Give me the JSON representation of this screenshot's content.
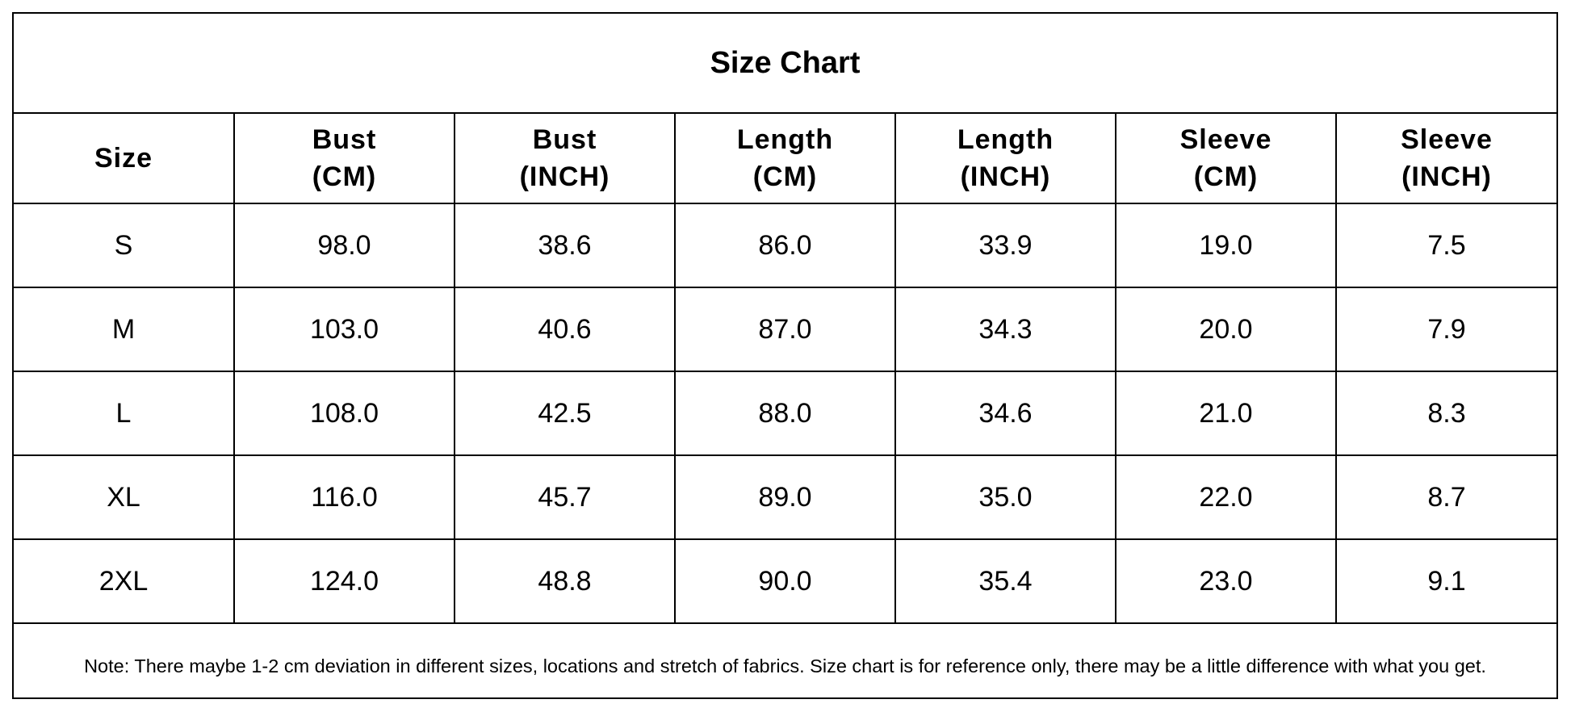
{
  "title": "Size Chart",
  "table": {
    "header": [
      "Size",
      "Bust\n(CM)",
      "Bust\n(INCH)",
      "Length\n(CM)",
      "Length\n(INCH)",
      "Sleeve\n(CM)",
      "Sleeve\n(INCH)"
    ],
    "rows": [
      [
        "S",
        "98.0",
        "38.6",
        "86.0",
        "33.9",
        "19.0",
        "7.5"
      ],
      [
        "M",
        "103.0",
        "40.6",
        "87.0",
        "34.3",
        "20.0",
        "7.9"
      ],
      [
        "L",
        "108.0",
        "42.5",
        "88.0",
        "34.6",
        "21.0",
        "8.3"
      ],
      [
        "XL",
        "116.0",
        "45.7",
        "89.0",
        "35.0",
        "22.0",
        "8.7"
      ],
      [
        "2XL",
        "124.0",
        "48.8",
        "90.0",
        "35.4",
        "23.0",
        "9.1"
      ]
    ]
  },
  "note": "Note: There maybe 1-2 cm deviation in different sizes, locations and stretch of fabrics. Size chart is for reference only, there may be a little difference with what you get."
}
